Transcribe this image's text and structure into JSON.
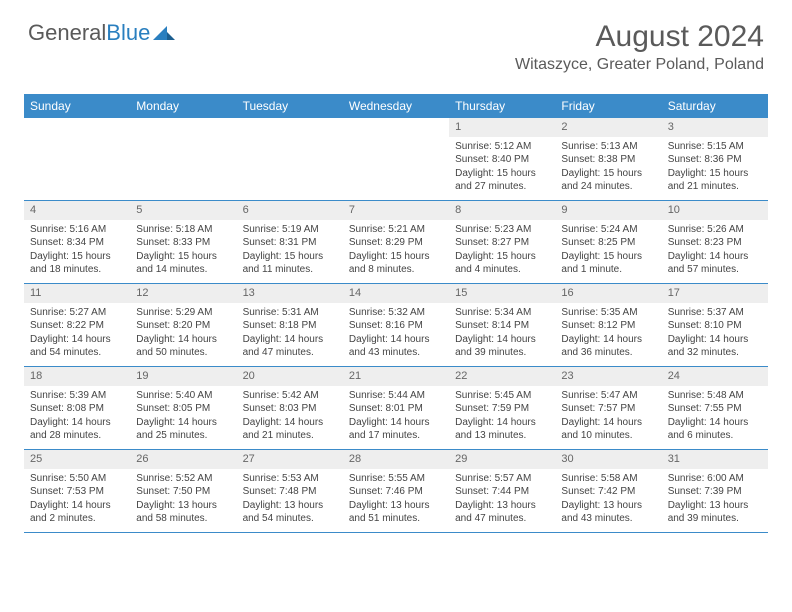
{
  "logo": {
    "part1": "General",
    "part2": "Blue"
  },
  "title": "August 2024",
  "location": "Witaszyce, Greater Poland, Poland",
  "colors": {
    "header_bg": "#3b8bc9",
    "header_text": "#ffffff",
    "daynum_bg": "#eeeeee",
    "border": "#3b8bc9",
    "text": "#444444",
    "title_text": "#5a5a5a",
    "logo_blue": "#2a7fbf"
  },
  "day_labels": [
    "Sunday",
    "Monday",
    "Tuesday",
    "Wednesday",
    "Thursday",
    "Friday",
    "Saturday"
  ],
  "weeks": [
    [
      {
        "n": "",
        "sr": "",
        "ss": "",
        "dl": "",
        "empty": true
      },
      {
        "n": "",
        "sr": "",
        "ss": "",
        "dl": "",
        "empty": true
      },
      {
        "n": "",
        "sr": "",
        "ss": "",
        "dl": "",
        "empty": true
      },
      {
        "n": "",
        "sr": "",
        "ss": "",
        "dl": "",
        "empty": true
      },
      {
        "n": "1",
        "sr": "Sunrise: 5:12 AM",
        "ss": "Sunset: 8:40 PM",
        "dl": "Daylight: 15 hours and 27 minutes."
      },
      {
        "n": "2",
        "sr": "Sunrise: 5:13 AM",
        "ss": "Sunset: 8:38 PM",
        "dl": "Daylight: 15 hours and 24 minutes."
      },
      {
        "n": "3",
        "sr": "Sunrise: 5:15 AM",
        "ss": "Sunset: 8:36 PM",
        "dl": "Daylight: 15 hours and 21 minutes."
      }
    ],
    [
      {
        "n": "4",
        "sr": "Sunrise: 5:16 AM",
        "ss": "Sunset: 8:34 PM",
        "dl": "Daylight: 15 hours and 18 minutes."
      },
      {
        "n": "5",
        "sr": "Sunrise: 5:18 AM",
        "ss": "Sunset: 8:33 PM",
        "dl": "Daylight: 15 hours and 14 minutes."
      },
      {
        "n": "6",
        "sr": "Sunrise: 5:19 AM",
        "ss": "Sunset: 8:31 PM",
        "dl": "Daylight: 15 hours and 11 minutes."
      },
      {
        "n": "7",
        "sr": "Sunrise: 5:21 AM",
        "ss": "Sunset: 8:29 PM",
        "dl": "Daylight: 15 hours and 8 minutes."
      },
      {
        "n": "8",
        "sr": "Sunrise: 5:23 AM",
        "ss": "Sunset: 8:27 PM",
        "dl": "Daylight: 15 hours and 4 minutes."
      },
      {
        "n": "9",
        "sr": "Sunrise: 5:24 AM",
        "ss": "Sunset: 8:25 PM",
        "dl": "Daylight: 15 hours and 1 minute."
      },
      {
        "n": "10",
        "sr": "Sunrise: 5:26 AM",
        "ss": "Sunset: 8:23 PM",
        "dl": "Daylight: 14 hours and 57 minutes."
      }
    ],
    [
      {
        "n": "11",
        "sr": "Sunrise: 5:27 AM",
        "ss": "Sunset: 8:22 PM",
        "dl": "Daylight: 14 hours and 54 minutes."
      },
      {
        "n": "12",
        "sr": "Sunrise: 5:29 AM",
        "ss": "Sunset: 8:20 PM",
        "dl": "Daylight: 14 hours and 50 minutes."
      },
      {
        "n": "13",
        "sr": "Sunrise: 5:31 AM",
        "ss": "Sunset: 8:18 PM",
        "dl": "Daylight: 14 hours and 47 minutes."
      },
      {
        "n": "14",
        "sr": "Sunrise: 5:32 AM",
        "ss": "Sunset: 8:16 PM",
        "dl": "Daylight: 14 hours and 43 minutes."
      },
      {
        "n": "15",
        "sr": "Sunrise: 5:34 AM",
        "ss": "Sunset: 8:14 PM",
        "dl": "Daylight: 14 hours and 39 minutes."
      },
      {
        "n": "16",
        "sr": "Sunrise: 5:35 AM",
        "ss": "Sunset: 8:12 PM",
        "dl": "Daylight: 14 hours and 36 minutes."
      },
      {
        "n": "17",
        "sr": "Sunrise: 5:37 AM",
        "ss": "Sunset: 8:10 PM",
        "dl": "Daylight: 14 hours and 32 minutes."
      }
    ],
    [
      {
        "n": "18",
        "sr": "Sunrise: 5:39 AM",
        "ss": "Sunset: 8:08 PM",
        "dl": "Daylight: 14 hours and 28 minutes."
      },
      {
        "n": "19",
        "sr": "Sunrise: 5:40 AM",
        "ss": "Sunset: 8:05 PM",
        "dl": "Daylight: 14 hours and 25 minutes."
      },
      {
        "n": "20",
        "sr": "Sunrise: 5:42 AM",
        "ss": "Sunset: 8:03 PM",
        "dl": "Daylight: 14 hours and 21 minutes."
      },
      {
        "n": "21",
        "sr": "Sunrise: 5:44 AM",
        "ss": "Sunset: 8:01 PM",
        "dl": "Daylight: 14 hours and 17 minutes."
      },
      {
        "n": "22",
        "sr": "Sunrise: 5:45 AM",
        "ss": "Sunset: 7:59 PM",
        "dl": "Daylight: 14 hours and 13 minutes."
      },
      {
        "n": "23",
        "sr": "Sunrise: 5:47 AM",
        "ss": "Sunset: 7:57 PM",
        "dl": "Daylight: 14 hours and 10 minutes."
      },
      {
        "n": "24",
        "sr": "Sunrise: 5:48 AM",
        "ss": "Sunset: 7:55 PM",
        "dl": "Daylight: 14 hours and 6 minutes."
      }
    ],
    [
      {
        "n": "25",
        "sr": "Sunrise: 5:50 AM",
        "ss": "Sunset: 7:53 PM",
        "dl": "Daylight: 14 hours and 2 minutes."
      },
      {
        "n": "26",
        "sr": "Sunrise: 5:52 AM",
        "ss": "Sunset: 7:50 PM",
        "dl": "Daylight: 13 hours and 58 minutes."
      },
      {
        "n": "27",
        "sr": "Sunrise: 5:53 AM",
        "ss": "Sunset: 7:48 PM",
        "dl": "Daylight: 13 hours and 54 minutes."
      },
      {
        "n": "28",
        "sr": "Sunrise: 5:55 AM",
        "ss": "Sunset: 7:46 PM",
        "dl": "Daylight: 13 hours and 51 minutes."
      },
      {
        "n": "29",
        "sr": "Sunrise: 5:57 AM",
        "ss": "Sunset: 7:44 PM",
        "dl": "Daylight: 13 hours and 47 minutes."
      },
      {
        "n": "30",
        "sr": "Sunrise: 5:58 AM",
        "ss": "Sunset: 7:42 PM",
        "dl": "Daylight: 13 hours and 43 minutes."
      },
      {
        "n": "31",
        "sr": "Sunrise: 6:00 AM",
        "ss": "Sunset: 7:39 PM",
        "dl": "Daylight: 13 hours and 39 minutes."
      }
    ]
  ]
}
